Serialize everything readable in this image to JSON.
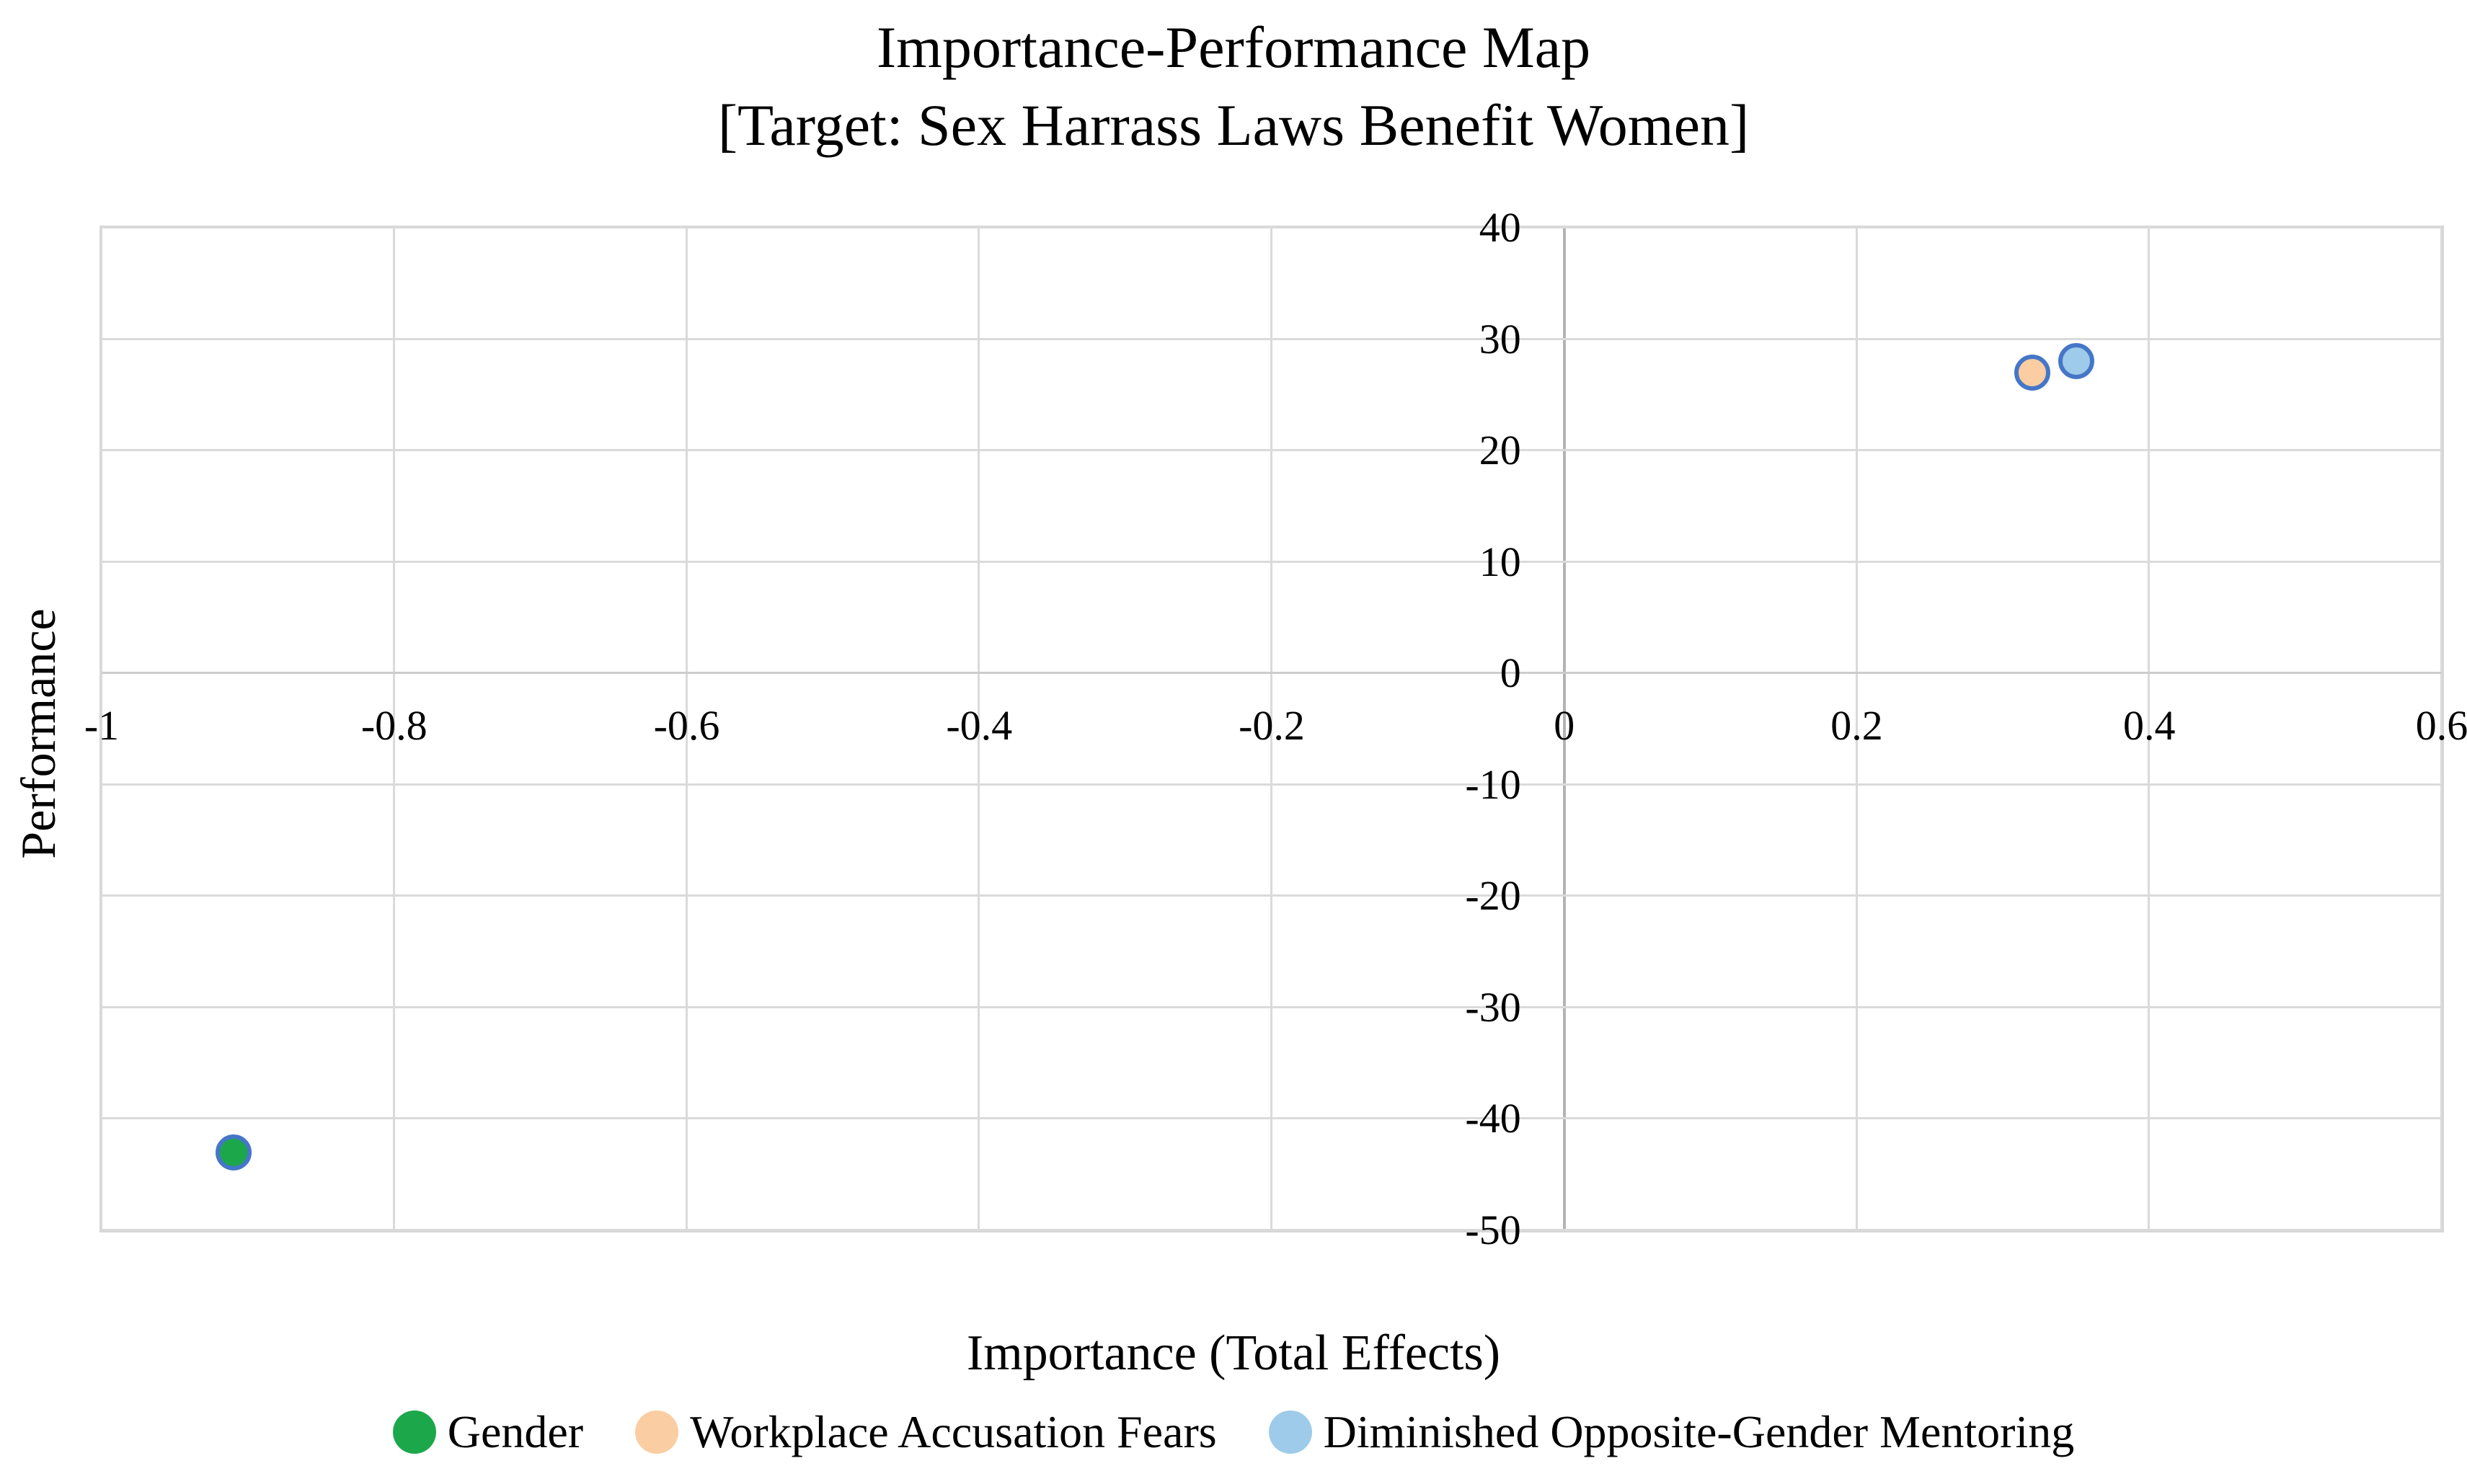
{
  "title": {
    "line1": "Importance-Performance Map",
    "line2": "[Target: Sex Harrass Laws Benefit Women]"
  },
  "chart_data": {
    "type": "scatter",
    "title": "Importance-Performance Map [Target: Sex Harrass Laws Benefit Women]",
    "xlabel": "Importance (Total Effects)",
    "ylabel": "Performance",
    "xlim": [
      -1,
      0.6
    ],
    "ylim": [
      -50,
      40
    ],
    "x_ticks": [
      -1,
      -0.8,
      -0.6,
      -0.4,
      -0.2,
      0,
      0.2,
      0.4,
      0.6
    ],
    "y_ticks": [
      40,
      30,
      20,
      10,
      0,
      -10,
      -20,
      -30,
      -40,
      -50
    ],
    "grid": true,
    "legend_position": "bottom",
    "series": [
      {
        "name": "Gender",
        "x": -0.91,
        "y": -43,
        "fill": "#1ca74a"
      },
      {
        "name": "Workplace Accusation Fears",
        "x": 0.32,
        "y": 27,
        "fill": "#facda2"
      },
      {
        "name": "Diminished Opposite-Gender Mentoring",
        "x": 0.35,
        "y": 28,
        "fill": "#9dcbe9"
      }
    ]
  },
  "colors": {
    "point_stroke": "#4576c8",
    "gridline": "#dadada",
    "axis_line": "#b3b3b3",
    "text": "#000000",
    "background": "#ffffff"
  }
}
